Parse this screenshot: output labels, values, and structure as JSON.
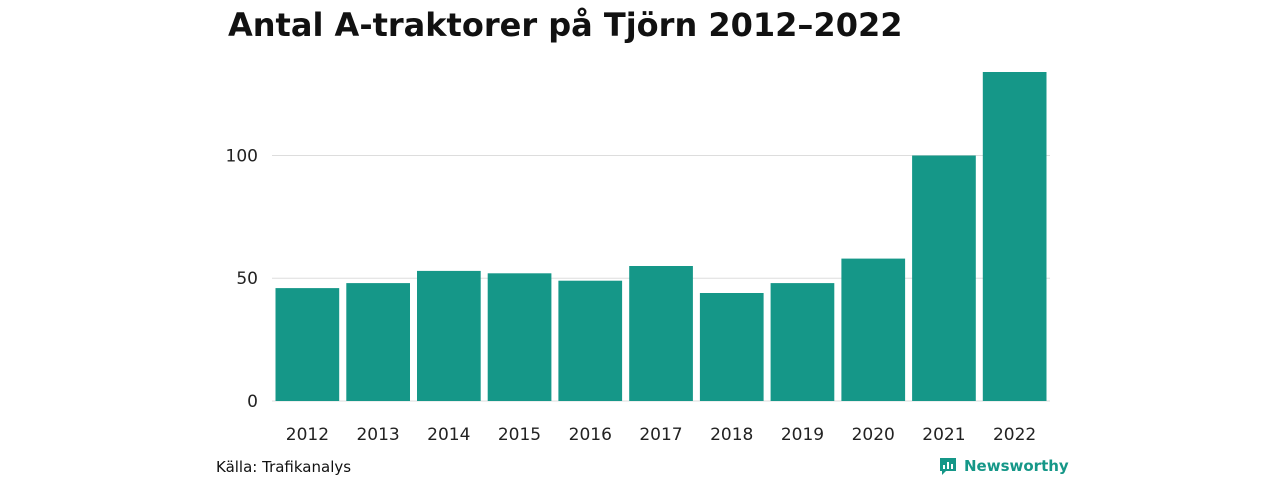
{
  "title": "Antal A-traktorer på Tjörn 2012–2022",
  "source": "Källa: Trafikanalys",
  "brand": {
    "name": "Newsworthy",
    "icon": "newsworthy-logo-icon",
    "color": "#159788"
  },
  "chart_data": {
    "type": "bar",
    "title": "Antal A-traktorer på Tjörn 2012–2022",
    "xlabel": "",
    "ylabel": "",
    "categories": [
      "2012",
      "2013",
      "2014",
      "2015",
      "2016",
      "2017",
      "2018",
      "2019",
      "2020",
      "2021",
      "2022"
    ],
    "values": [
      46,
      48,
      53,
      52,
      49,
      55,
      44,
      48,
      58,
      100,
      134
    ],
    "ylim": [
      0,
      134
    ],
    "yticks": [
      0,
      50,
      100
    ],
    "grid": true,
    "bar_color": "#159788",
    "legend": "none"
  }
}
